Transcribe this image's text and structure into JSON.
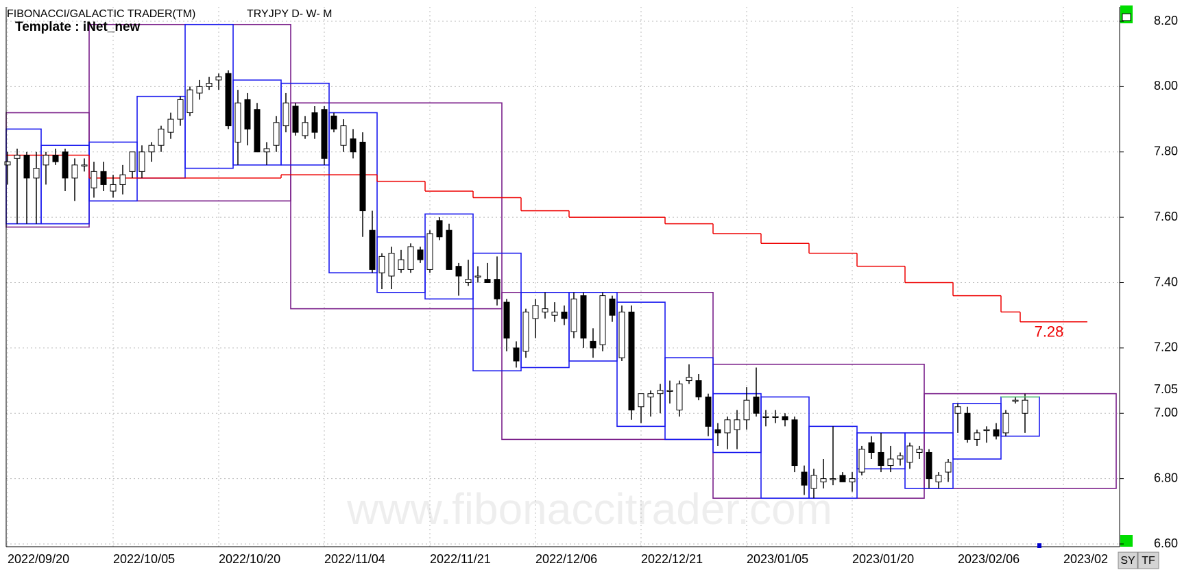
{
  "chart_data": {
    "type": "candlestick",
    "title": "FIBONACCI/GALACTIC TRADER(TM)",
    "symbol": "TRYJPY D- W- M",
    "template": "Template : iNet_new",
    "watermark": "www.fibonaccitrader.com",
    "buttons": [
      "SY",
      "TF"
    ],
    "ylim": [
      6.6,
      8.2
    ],
    "yticks": [
      {
        "value": 6.6,
        "label": "6.60"
      },
      {
        "value": 6.8,
        "label": "6.80"
      },
      {
        "value": 7.0,
        "label": "7.00"
      },
      {
        "value": 7.2,
        "label": "7.20"
      },
      {
        "value": 7.4,
        "label": "7.40"
      },
      {
        "value": 7.6,
        "label": "7.60"
      },
      {
        "value": 7.8,
        "label": "7.80"
      },
      {
        "value": 8.0,
        "label": "8.00"
      },
      {
        "value": 8.2,
        "label": "8.20"
      }
    ],
    "xticks": [
      {
        "value": 0,
        "label": "2022/09/20"
      },
      {
        "value": 11,
        "label": "2022/10/05"
      },
      {
        "value": 22,
        "label": "2022/10/20"
      },
      {
        "value": 33,
        "label": "2022/11/04"
      },
      {
        "value": 44,
        "label": "2022/11/21"
      },
      {
        "value": 55,
        "label": "2022/12/06"
      },
      {
        "value": 66,
        "label": "2022/12/21"
      },
      {
        "value": 77,
        "label": "2023/01/05"
      },
      {
        "value": 88,
        "label": "2023/01/20"
      },
      {
        "value": 99,
        "label": "2023/02/06"
      },
      {
        "value": 110,
        "label": "2023/02"
      }
    ],
    "grid": true,
    "last_price": 7.05,
    "ohlc": [
      [
        7.76,
        7.8,
        7.7,
        7.77
      ],
      [
        7.78,
        7.81,
        7.58,
        7.79
      ],
      [
        7.79,
        7.8,
        7.58,
        7.72
      ],
      [
        7.72,
        7.8,
        7.58,
        7.75
      ],
      [
        7.76,
        7.8,
        7.7,
        7.79
      ],
      [
        7.79,
        7.81,
        7.76,
        7.77
      ],
      [
        7.8,
        7.81,
        7.68,
        7.72
      ],
      [
        7.72,
        7.78,
        7.65,
        7.76
      ],
      [
        7.76,
        7.78,
        7.74,
        7.76
      ],
      [
        7.69,
        7.77,
        7.66,
        7.74
      ],
      [
        7.74,
        7.77,
        7.68,
        7.7
      ],
      [
        7.68,
        7.73,
        7.66,
        7.7
      ],
      [
        7.7,
        7.76,
        7.67,
        7.73
      ],
      [
        7.74,
        7.8,
        7.72,
        7.8
      ],
      [
        7.74,
        7.82,
        7.72,
        7.8
      ],
      [
        7.8,
        7.83,
        7.77,
        7.82
      ],
      [
        7.82,
        7.88,
        7.8,
        7.87
      ],
      [
        7.86,
        7.92,
        7.84,
        7.9
      ],
      [
        7.9,
        7.97,
        7.88,
        7.96
      ],
      [
        7.92,
        8.0,
        7.91,
        7.99
      ],
      [
        7.98,
        8.02,
        7.96,
        8.0
      ],
      [
        8.0,
        8.03,
        7.99,
        8.01
      ],
      [
        8.02,
        8.04,
        7.99,
        8.03
      ],
      [
        8.04,
        8.05,
        7.87,
        7.88
      ],
      [
        7.83,
        7.99,
        7.76,
        7.95
      ],
      [
        7.96,
        7.98,
        7.82,
        7.87
      ],
      [
        7.93,
        7.95,
        7.8,
        7.8
      ],
      [
        7.8,
        7.83,
        7.76,
        7.81
      ],
      [
        7.82,
        7.91,
        7.8,
        7.89
      ],
      [
        7.88,
        7.98,
        7.86,
        7.95
      ],
      [
        7.94,
        7.95,
        7.85,
        7.86
      ],
      [
        7.85,
        7.91,
        7.84,
        7.89
      ],
      [
        7.92,
        7.94,
        7.84,
        7.86
      ],
      [
        7.93,
        7.94,
        7.76,
        7.78
      ],
      [
        7.91,
        7.92,
        7.86,
        7.87
      ],
      [
        7.82,
        7.9,
        7.8,
        7.88
      ],
      [
        7.84,
        7.87,
        7.78,
        7.8
      ],
      [
        7.83,
        7.86,
        7.54,
        7.62
      ],
      [
        7.56,
        7.62,
        7.43,
        7.44
      ],
      [
        7.43,
        7.49,
        7.38,
        7.48
      ],
      [
        7.42,
        7.51,
        7.38,
        7.49
      ],
      [
        7.44,
        7.5,
        7.43,
        7.47
      ],
      [
        7.44,
        7.52,
        7.43,
        7.51
      ],
      [
        7.5,
        7.51,
        7.46,
        7.47
      ],
      [
        7.44,
        7.56,
        7.43,
        7.55
      ],
      [
        7.59,
        7.6,
        7.53,
        7.54
      ],
      [
        7.56,
        7.58,
        7.44,
        7.44
      ],
      [
        7.45,
        7.46,
        7.36,
        7.42
      ],
      [
        7.4,
        7.47,
        7.39,
        7.41
      ],
      [
        7.42,
        7.45,
        7.4,
        7.42
      ],
      [
        7.41,
        7.46,
        7.4,
        7.4
      ],
      [
        7.41,
        7.48,
        7.33,
        7.35
      ],
      [
        7.34,
        7.35,
        7.19,
        7.23
      ],
      [
        7.2,
        7.22,
        7.14,
        7.16
      ],
      [
        7.19,
        7.32,
        7.17,
        7.31
      ],
      [
        7.29,
        7.35,
        7.23,
        7.33
      ],
      [
        7.31,
        7.37,
        7.29,
        7.32
      ],
      [
        7.3,
        7.34,
        7.28,
        7.31
      ],
      [
        7.31,
        7.33,
        7.27,
        7.29
      ],
      [
        7.25,
        7.37,
        7.23,
        7.35
      ],
      [
        7.36,
        7.37,
        7.2,
        7.23
      ],
      [
        7.22,
        7.26,
        7.17,
        7.2
      ],
      [
        7.21,
        7.37,
        7.19,
        7.36
      ],
      [
        7.35,
        7.36,
        7.28,
        7.3
      ],
      [
        7.17,
        7.33,
        7.16,
        7.31
      ],
      [
        7.31,
        7.33,
        6.98,
        7.01
      ],
      [
        7.02,
        7.06,
        6.97,
        7.06
      ],
      [
        7.05,
        7.07,
        6.99,
        7.06
      ],
      [
        7.06,
        7.09,
        7.0,
        7.07
      ],
      [
        7.07,
        7.1,
        7.03,
        7.07
      ],
      [
        7.01,
        7.1,
        6.99,
        7.09
      ],
      [
        7.1,
        7.15,
        7.09,
        7.11
      ],
      [
        7.1,
        7.12,
        7.04,
        7.05
      ],
      [
        7.05,
        7.06,
        6.93,
        6.96
      ],
      [
        6.95,
        6.97,
        6.9,
        6.94
      ],
      [
        6.94,
        6.99,
        6.89,
        6.98
      ],
      [
        6.95,
        7.01,
        6.89,
        6.98
      ],
      [
        6.98,
        7.08,
        6.95,
        7.04
      ],
      [
        7.05,
        7.14,
        6.99,
        7.0
      ],
      [
        6.99,
        7.01,
        6.96,
        6.99
      ],
      [
        6.99,
        7.01,
        6.97,
        6.99
      ],
      [
        6.99,
        7.0,
        6.96,
        6.98
      ],
      [
        6.98,
        6.99,
        6.82,
        6.84
      ],
      [
        6.82,
        6.84,
        6.75,
        6.78
      ],
      [
        6.77,
        6.83,
        6.74,
        6.81
      ],
      [
        6.79,
        6.86,
        6.77,
        6.8
      ],
      [
        6.8,
        6.96,
        6.78,
        6.8
      ],
      [
        6.81,
        6.82,
        6.79,
        6.79
      ],
      [
        6.79,
        6.82,
        6.76,
        6.8
      ],
      [
        6.82,
        6.9,
        6.81,
        6.89
      ],
      [
        6.91,
        6.93,
        6.86,
        6.88
      ],
      [
        6.88,
        6.94,
        6.82,
        6.84
      ],
      [
        6.84,
        6.9,
        6.82,
        6.86
      ],
      [
        6.86,
        6.88,
        6.84,
        6.87
      ],
      [
        6.85,
        6.91,
        6.83,
        6.9
      ],
      [
        6.88,
        6.9,
        6.86,
        6.89
      ],
      [
        6.88,
        6.89,
        6.77,
        6.8
      ],
      [
        6.79,
        6.82,
        6.77,
        6.81
      ],
      [
        6.82,
        6.86,
        6.79,
        6.85
      ],
      [
        7.0,
        7.03,
        6.94,
        7.02
      ],
      [
        7.0,
        7.02,
        6.91,
        6.92
      ],
      [
        6.92,
        6.95,
        6.9,
        6.94
      ],
      [
        6.95,
        6.96,
        6.91,
        6.95
      ],
      [
        6.95,
        6.97,
        6.92,
        6.93
      ],
      [
        6.94,
        7.01,
        6.93,
        7.0
      ],
      [
        7.04,
        7.05,
        7.03,
        7.04
      ],
      [
        7.0,
        7.06,
        6.94,
        7.04
      ]
    ],
    "weekly_boxes": [
      {
        "x": [
          -1,
          3
        ],
        "y": [
          7.58,
          7.87
        ]
      },
      {
        "x": [
          4,
          8
        ],
        "y": [
          7.58,
          7.82
        ]
      },
      {
        "x": [
          9,
          13
        ],
        "y": [
          7.65,
          7.83
        ]
      },
      {
        "x": [
          14,
          18
        ],
        "y": [
          7.72,
          7.97
        ]
      },
      {
        "x": [
          19,
          23
        ],
        "y": [
          7.75,
          8.19
        ]
      },
      {
        "x": [
          24,
          28
        ],
        "y": [
          7.76,
          8.02
        ]
      },
      {
        "x": [
          29,
          33
        ],
        "y": [
          7.76,
          8.01
        ]
      },
      {
        "x": [
          34,
          38
        ],
        "y": [
          7.43,
          7.92
        ]
      },
      {
        "x": [
          39,
          43
        ],
        "y": [
          7.37,
          7.54
        ]
      },
      {
        "x": [
          44,
          48
        ],
        "y": [
          7.35,
          7.61
        ]
      },
      {
        "x": [
          49,
          53
        ],
        "y": [
          7.13,
          7.49
        ]
      },
      {
        "x": [
          54,
          58
        ],
        "y": [
          7.14,
          7.37
        ]
      },
      {
        "x": [
          59,
          63
        ],
        "y": [
          7.16,
          7.37
        ]
      },
      {
        "x": [
          64,
          68
        ],
        "y": [
          6.96,
          7.34
        ]
      },
      {
        "x": [
          69,
          73
        ],
        "y": [
          6.92,
          7.17
        ]
      },
      {
        "x": [
          74,
          78
        ],
        "y": [
          6.88,
          7.06
        ]
      },
      {
        "x": [
          79,
          83
        ],
        "y": [
          6.74,
          7.05
        ]
      },
      {
        "x": [
          84,
          88
        ],
        "y": [
          6.74,
          6.96
        ]
      },
      {
        "x": [
          89,
          93
        ],
        "y": [
          6.83,
          6.94
        ]
      },
      {
        "x": [
          94,
          98
        ],
        "y": [
          6.77,
          6.94
        ]
      },
      {
        "x": [
          99,
          103
        ],
        "y": [
          6.86,
          7.03
        ]
      },
      {
        "x": [
          104,
          107
        ],
        "y": [
          6.93,
          7.05
        ]
      }
    ],
    "monthly_boxes": [
      {
        "x": [
          -1,
          8
        ],
        "y": [
          7.57,
          7.92
        ]
      },
      {
        "x": [
          9,
          29
        ],
        "y": [
          7.65,
          8.19
        ]
      },
      {
        "x": [
          30,
          51
        ],
        "y": [
          7.32,
          7.95
        ]
      },
      {
        "x": [
          52,
          73
        ],
        "y": [
          6.92,
          7.37
        ]
      },
      {
        "x": [
          74,
          95
        ],
        "y": [
          6.74,
          7.15
        ]
      },
      {
        "x": [
          96,
          115
        ],
        "y": [
          6.77,
          7.06
        ]
      }
    ],
    "ma_steps": [
      {
        "x": [
          -1,
          8
        ],
        "value": 7.79
      },
      {
        "x": [
          9,
          18
        ],
        "value": 7.72
      },
      {
        "x": [
          19,
          28
        ],
        "value": 7.72
      },
      {
        "x": [
          29,
          38
        ],
        "value": 7.73
      },
      {
        "x": [
          39,
          43
        ],
        "value": 7.71
      },
      {
        "x": [
          44,
          48
        ],
        "value": 7.68
      },
      {
        "x": [
          49,
          53
        ],
        "value": 7.66
      },
      {
        "x": [
          54,
          58
        ],
        "value": 7.62
      },
      {
        "x": [
          59,
          63
        ],
        "value": 7.6
      },
      {
        "x": [
          64,
          68
        ],
        "value": 7.6
      },
      {
        "x": [
          69,
          73
        ],
        "value": 7.58
      },
      {
        "x": [
          74,
          78
        ],
        "value": 7.55
      },
      {
        "x": [
          79,
          83
        ],
        "value": 7.52
      },
      {
        "x": [
          84,
          88
        ],
        "value": 7.49
      },
      {
        "x": [
          89,
          93
        ],
        "value": 7.45
      },
      {
        "x": [
          94,
          98
        ],
        "value": 7.4
      },
      {
        "x": [
          99,
          103
        ],
        "value": 7.36
      },
      {
        "x": [
          104,
          105
        ],
        "value": 7.31
      },
      {
        "x": [
          106,
          112
        ],
        "value": 7.28
      }
    ],
    "ma_label": 7.28
  }
}
